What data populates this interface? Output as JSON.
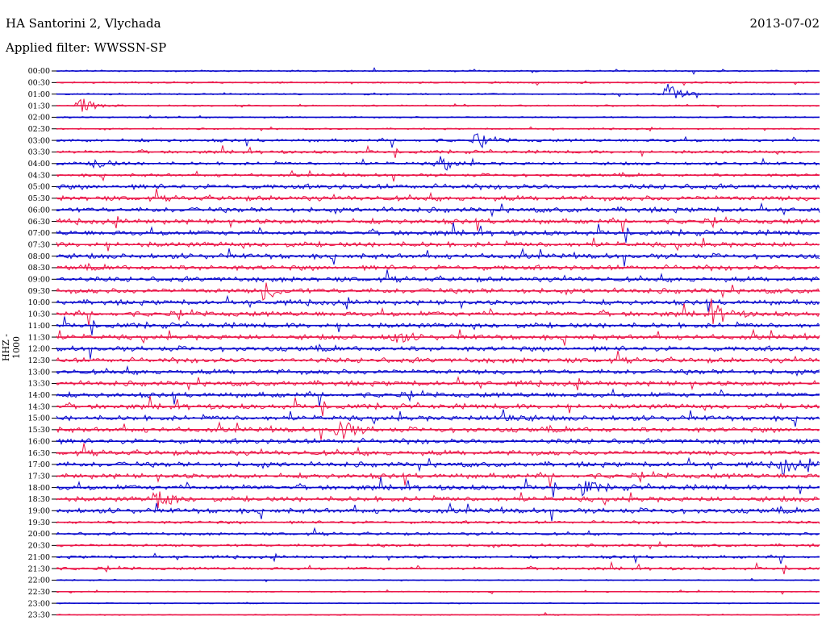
{
  "header": {
    "station": "HA Santorini 2, Vlychada",
    "date": "2013-07-02",
    "filter": "Applied filter: WWSSN-SP",
    "channel": "HHZ - 1000"
  },
  "colors": {
    "blue": "#0a0acd",
    "red": "#eb1648"
  },
  "chart_data": {
    "type": "line",
    "title": "",
    "y_tick_labels": [
      "00:00",
      "00:30",
      "01:00",
      "01:30",
      "02:00",
      "02:30",
      "03:00",
      "03:30",
      "04:00",
      "04:30",
      "05:00",
      "05:30",
      "06:00",
      "06:30",
      "07:00",
      "07:30",
      "08:00",
      "08:30",
      "09:00",
      "09:30",
      "10:00",
      "10:30",
      "11:00",
      "11:30",
      "12:00",
      "12:30",
      "13:00",
      "13:30",
      "14:00",
      "14:30",
      "15:00",
      "15:30",
      "16:00",
      "16:30",
      "17:00",
      "17:30",
      "18:00",
      "18:30",
      "19:00",
      "19:30",
      "20:00",
      "20:30",
      "21:00",
      "21:30",
      "22:00",
      "22:30",
      "23:00",
      "23:30"
    ],
    "trace_colors_alternate": [
      "blue",
      "red"
    ],
    "events": [
      {
        "trace": "01:00",
        "pos": 0.8,
        "amp": 16
      },
      {
        "trace": "01:30",
        "pos": 0.03,
        "amp": 12
      },
      {
        "trace": "03:00",
        "pos": 0.55,
        "amp": 8
      },
      {
        "trace": "04:00",
        "pos": 0.05,
        "amp": 8
      },
      {
        "trace": "04:00",
        "pos": 0.5,
        "amp": 10
      },
      {
        "trace": "09:30",
        "pos": 0.27,
        "amp": 12
      },
      {
        "trace": "10:30",
        "pos": 0.86,
        "amp": 14
      },
      {
        "trace": "11:30",
        "pos": 0.44,
        "amp": 10
      },
      {
        "trace": "15:00",
        "pos": 0.58,
        "amp": 12
      },
      {
        "trace": "15:30",
        "pos": 0.37,
        "amp": 16
      },
      {
        "trace": "17:00",
        "pos": 0.95,
        "amp": 12
      },
      {
        "trace": "18:00",
        "pos": 0.69,
        "amp": 10
      },
      {
        "trace": "18:30",
        "pos": 0.13,
        "amp": 14
      }
    ]
  }
}
